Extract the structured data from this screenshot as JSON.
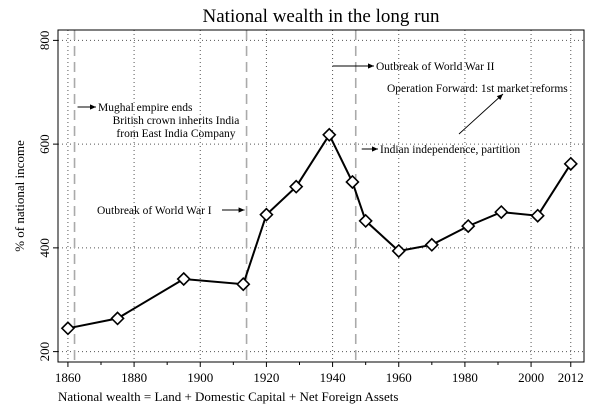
{
  "chart_data": {
    "type": "line",
    "title": "National wealth in the long run",
    "xlabel": "National wealth = Land + Domestic Capital + Net Foreign Assets",
    "ylabel": "% of national income",
    "xlim": [
      1857,
      2016
    ],
    "ylim": [
      180,
      820
    ],
    "x_ticks": [
      1860,
      1880,
      1900,
      1920,
      1940,
      1960,
      1980,
      2000,
      2012
    ],
    "minor_x_ticks": [
      1870,
      1890,
      1910,
      1930,
      1950,
      1970,
      1990
    ],
    "y_ticks": [
      200,
      400,
      600,
      800
    ],
    "grid": true,
    "series": [
      {
        "x": [
          1860,
          1875,
          1895,
          1913,
          1920,
          1929,
          1939,
          1946,
          1950,
          1960,
          1970,
          1981,
          1991,
          2002,
          2012
        ],
        "values": [
          245,
          264,
          340,
          330,
          464,
          518,
          618,
          527,
          452,
          394,
          406,
          442,
          469,
          462,
          562
        ]
      }
    ],
    "event_lines": [
      1862,
      1914,
      1947
    ],
    "annotations": [
      {
        "id": "mughal",
        "lines": [
          "Mughal empire ends",
          "British crown inherits India",
          "from East India Company"
        ]
      },
      {
        "id": "ww1",
        "lines": [
          "Outbreak of World War I"
        ]
      },
      {
        "id": "ww2",
        "lines": [
          "Outbreak of World War II"
        ]
      },
      {
        "id": "reforms",
        "lines": [
          "Operation Forward: 1st market reforms"
        ]
      },
      {
        "id": "independence",
        "lines": [
          "Indian independence, partition"
        ]
      }
    ],
    "colors": {
      "line": "#000000",
      "grid": "#555555",
      "event": "#aaaaaa",
      "marker_fill": "#ffffff"
    }
  }
}
